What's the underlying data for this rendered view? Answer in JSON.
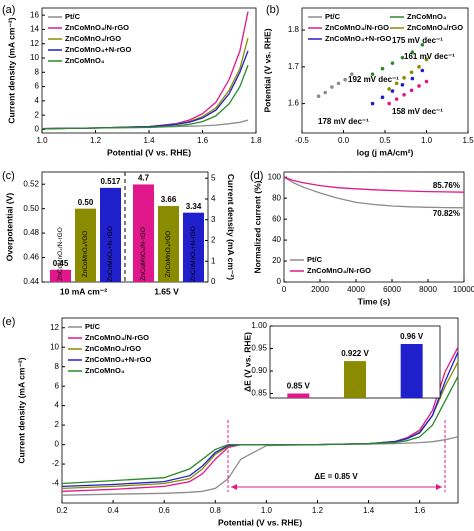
{
  "chart_data": [
    {
      "type": "line",
      "panel": "(a)",
      "xlabel": "Potential (V vs. RHE)",
      "ylabel": "Current density (mA cm⁻²)",
      "xlim": [
        1.0,
        1.8
      ],
      "ylim": [
        -0.5,
        17
      ],
      "xticks": [
        {
          "value": 1.0,
          "label": "1.0"
        },
        1.2,
        1.4,
        1.6,
        1.8
      ],
      "yticks": [
        0,
        2,
        4,
        6,
        8,
        10,
        12,
        14,
        16
      ],
      "legend": "upper left",
      "x": [
        1.0,
        1.2,
        1.4,
        1.5,
        1.55,
        1.6,
        1.65,
        1.7,
        1.74,
        1.77
      ],
      "series": [
        {
          "name": "Pt/C",
          "color": "#8c8c8c",
          "values": [
            0.1,
            0.2,
            0.3,
            0.4,
            0.45,
            0.5,
            0.6,
            0.8,
            1.0,
            1.3
          ]
        },
        {
          "name": "ZnCoMnO₄/N-rGO",
          "color": "#e0188c",
          "values": [
            0.1,
            0.2,
            0.4,
            0.8,
            1.3,
            2.2,
            3.8,
            7,
            11,
            16.5
          ]
        },
        {
          "name": "ZnCoMnO₄/rGO",
          "color": "#8b8b00",
          "values": [
            0.1,
            0.2,
            0.4,
            0.7,
            1.1,
            1.8,
            3,
            5.5,
            8.5,
            12.8
          ]
        },
        {
          "name": "ZnCoMnO₄+N-rGO",
          "color": "#1f1fcc",
          "values": [
            0.1,
            0.2,
            0.4,
            0.7,
            1.0,
            1.6,
            2.7,
            5,
            8,
            11
          ]
        },
        {
          "name": "ZnCoMnO₄",
          "color": "#2a8a2a",
          "values": [
            0.1,
            0.2,
            0.3,
            0.5,
            0.7,
            1.1,
            1.9,
            3.6,
            6,
            9
          ]
        }
      ]
    },
    {
      "type": "scatter",
      "panel": "(b)",
      "xlabel": "log (j mA/cm²)",
      "ylabel": "Potential (V vs. RHE)",
      "xlim": [
        -0.5,
        1.5
      ],
      "ylim": [
        1.52,
        1.86
      ],
      "xticks": [
        -0.5,
        {
          "value": 0.0,
          "label": "0.0"
        },
        0.5,
        {
          "value": 1.0,
          "label": "1.0"
        },
        1.5
      ],
      "yticks": [
        1.6,
        1.7,
        1.8
      ],
      "legend": "upper left",
      "series": [
        {
          "name": "Pt/C",
          "color": "#8c8c8c",
          "x": [
            -0.3,
            -0.22,
            -0.14,
            -0.06,
            0.02,
            0.1
          ],
          "values": [
            1.62,
            1.63,
            1.645,
            1.655,
            1.665,
            1.68
          ]
        },
        {
          "name": "ZnCoMnO₄",
          "color": "#2a8a2a",
          "x": [
            0.35,
            0.47,
            0.59,
            0.71,
            0.83,
            0.95
          ],
          "values": [
            1.68,
            1.695,
            1.71,
            1.725,
            1.74,
            1.76
          ]
        },
        {
          "name": "ZnCoMnO₄/N-rGO",
          "color": "#e0188c",
          "x": [
            0.55,
            0.64,
            0.73,
            0.82,
            0.91,
            1.0
          ],
          "values": [
            1.6,
            1.612,
            1.624,
            1.636,
            1.648,
            1.66
          ]
        },
        {
          "name": "ZnCoMnO₄/rGO",
          "color": "#8b8b00",
          "x": [
            0.55,
            0.64,
            0.73,
            0.82,
            0.91,
            1.0
          ],
          "values": [
            1.64,
            1.655,
            1.67,
            1.685,
            1.7,
            1.72
          ]
        },
        {
          "name": "ZnCoMnO₄+N-rGO",
          "color": "#1f1fcc",
          "x": [
            0.35,
            0.47,
            0.59,
            0.71,
            0.83,
            0.95
          ],
          "values": [
            1.6,
            1.617,
            1.634,
            1.651,
            1.668,
            1.69
          ]
        }
      ],
      "annotations": [
        {
          "text": "192 mV dec⁻¹",
          "color": "#8c8c8c"
        },
        {
          "text": "175 mV dec⁻¹",
          "color": "#2a8a2a"
        },
        {
          "text": "161 mV dec⁻¹",
          "color": "#8b8b00"
        },
        {
          "text": "158 mV dec⁻¹",
          "color": "#e0188c"
        },
        {
          "text": "178 mV dec⁻¹",
          "color": "#1f1fcc"
        }
      ]
    },
    {
      "type": "bar",
      "panel": "(c)",
      "ylabel": "Overpotential (V)",
      "y2label": "Current density (mA cm⁻²)",
      "ylim": [
        0.44,
        0.53
      ],
      "yticks": [
        0.44,
        0.46,
        0.48,
        {
          "value": 0.5,
          "label": "0.50"
        },
        0.52
      ],
      "y2lim": [
        0,
        5.3
      ],
      "y2ticks": [
        0,
        1,
        2,
        3,
        4,
        5
      ],
      "series": [
        {
          "name": "ZnCoMnO₄/N-rGO",
          "color": "#e0188c"
        },
        {
          "name": "ZnCoMnO₄/rGO",
          "color": "#8b8b00"
        },
        {
          "name": "ZnCoMnO₄+N-rGO",
          "color": "#1f1fcc"
        }
      ],
      "groups": [
        {
          "label": "10 mA cm⁻²",
          "axis": "y",
          "values": [
            0.45,
            0.5,
            0.517
          ],
          "value_labels": [
            "0.45",
            "0.50",
            "0.517"
          ]
        },
        {
          "label": "1.65 V",
          "axis": "y2",
          "values": [
            4.7,
            3.66,
            3.34
          ]
        }
      ]
    },
    {
      "type": "line",
      "panel": "(d)",
      "xlabel": "Time (s)",
      "ylabel": "Normalized current (%)",
      "xlim": [
        0,
        10000
      ],
      "ylim": [
        0,
        105
      ],
      "xticks": [
        0,
        2000,
        4000,
        6000,
        8000,
        10000
      ],
      "yticks": [
        0,
        20,
        40,
        60,
        80,
        100
      ],
      "legend": "lower left",
      "x": [
        0,
        500,
        1000,
        2000,
        3000,
        4000,
        5000,
        6000,
        7000,
        8000,
        9000,
        10000
      ],
      "series": [
        {
          "name": "Pt/C",
          "color": "#8c8c8c",
          "values": [
            100,
            95,
            91,
            85,
            80,
            76,
            74,
            72.5,
            71.8,
            71.3,
            71,
            70.82
          ]
        },
        {
          "name": "ZnCoMnO₄/N-rGO",
          "color": "#e0188c",
          "values": [
            100,
            97,
            95,
            92,
            90,
            89,
            88,
            87.3,
            86.8,
            86.3,
            86,
            85.76
          ]
        }
      ],
      "annotations": [
        {
          "text": "85.76%",
          "color": "#e0188c"
        },
        {
          "text": "70.82%",
          "color": "#8c8c8c"
        }
      ]
    },
    {
      "type": "line",
      "panel": "(e)",
      "xlabel": "Potential (V vs. RHE)",
      "ylabel": "Current density (mA cm⁻²)",
      "xlim": [
        0.2,
        1.75
      ],
      "ylim": [
        -6,
        13
      ],
      "xticks": [
        0.2,
        0.4,
        0.6,
        0.8,
        {
          "value": 1.0,
          "label": "1.0"
        },
        1.2,
        1.4,
        1.6
      ],
      "yticks": [
        -4,
        -2,
        0,
        2,
        4,
        6,
        8,
        10,
        12
      ],
      "legend": "upper left",
      "x": [
        0.2,
        0.4,
        0.6,
        0.7,
        0.75,
        0.8,
        0.85,
        0.9,
        1.0,
        1.2,
        1.4,
        1.5,
        1.55,
        1.6,
        1.65,
        1.7,
        1.75
      ],
      "series": [
        {
          "name": "Pt/C",
          "color": "#8c8c8c",
          "values": [
            -5.2,
            -5.1,
            -5.0,
            -4.9,
            -4.8,
            -4.5,
            -3.5,
            -1.5,
            -0.1,
            0,
            0.05,
            0.1,
            0.15,
            0.2,
            0.3,
            0.5,
            0.8
          ]
        },
        {
          "name": "ZnCoMnO₄/N-rGO",
          "color": "#e0188c",
          "values": [
            -4.8,
            -4.6,
            -4.3,
            -3.8,
            -3,
            -1.5,
            -0.3,
            0,
            0,
            0,
            0.1,
            0.3,
            0.7,
            1.5,
            3.5,
            7.5,
            10
          ]
        },
        {
          "name": "ZnCoMnO₄/rGO",
          "color": "#8b8b00",
          "values": [
            -4.5,
            -4.3,
            -4,
            -3.5,
            -2.5,
            -1,
            -0.2,
            0,
            0,
            0,
            0.1,
            0.3,
            0.6,
            1.3,
            3,
            6,
            8.5
          ]
        },
        {
          "name": "ZnCoMnO₄+N-rGO",
          "color": "#1f1fcc",
          "values": [
            -4.3,
            -4.1,
            -3.8,
            -3.2,
            -2.2,
            -0.8,
            -0.1,
            0,
            0,
            0,
            0.1,
            0.3,
            0.6,
            1.2,
            3,
            6.5,
            9.5
          ]
        },
        {
          "name": "ZnCoMnO₄",
          "color": "#2a8a2a",
          "values": [
            -4.0,
            -3.7,
            -3.4,
            -2.5,
            -1.5,
            -0.5,
            0,
            0,
            0,
            0,
            0.1,
            0.2,
            0.4,
            0.8,
            2,
            4.5,
            7
          ]
        }
      ],
      "annotations": [
        {
          "text": "ΔE = 0.85 V",
          "color": "#e0188c"
        }
      ]
    },
    {
      "type": "bar",
      "ylabel": "ΔE (V vs. RHE)",
      "ylim": [
        0.84,
        1.0
      ],
      "yticks": [
        0.85,
        {
          "value": 0.9,
          "label": "0.90"
        },
        0.95,
        {
          "value": 1.0,
          "label": "1.00"
        }
      ],
      "values": [
        0.85,
        0.922,
        0.96
      ],
      "value_labels": [
        "0.85 V",
        "0.922 V",
        "0.96 V"
      ],
      "colors": [
        "#e0188c",
        "#8b8b00",
        "#1f1fcc"
      ]
    }
  ]
}
